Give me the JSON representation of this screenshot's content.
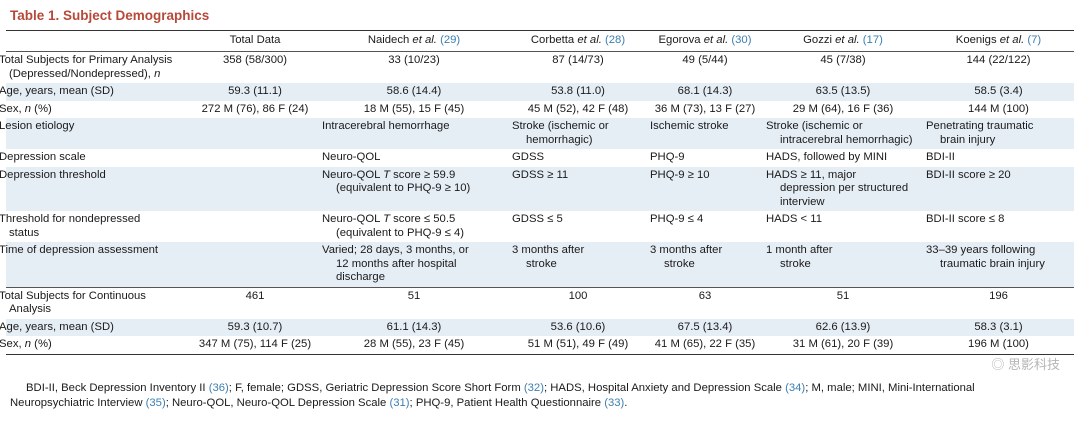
{
  "title": "Table 1. Subject Demographics",
  "headers": [
    {
      "text": "Total Data",
      "suffix": "",
      "cite": ""
    },
    {
      "text": "Naidech ",
      "suffix": "et al.",
      "cite": "(29)"
    },
    {
      "text": "Corbetta ",
      "suffix": "et al.",
      "cite": "(28)"
    },
    {
      "text": "Egorova ",
      "suffix": "et al.",
      "cite": "(30)"
    },
    {
      "text": "Gozzi ",
      "suffix": "et al.",
      "cite": "(17)"
    },
    {
      "text": "Koenigs ",
      "suffix": "et al.",
      "cite": "(7)"
    }
  ],
  "rows": {
    "total_primary": {
      "label_a": "Total Subjects for Primary Analysis",
      "label_b": "(Depressed/Nondepressed), ",
      "label_c": "n",
      "values": [
        "358 (58/300)",
        "33 (10/23)",
        "87 (14/73)",
        "49 (5/44)",
        "45 (7/38)",
        "144 (22/122)"
      ]
    },
    "age_primary": {
      "label": "Age, years, mean (SD)",
      "values": [
        "59.3 (11.1)",
        "58.6 (14.4)",
        "53.8 (11.0)",
        "68.1 (14.3)",
        "63.5 (13.5)",
        "58.5 (3.4)"
      ]
    },
    "sex_primary": {
      "label_a": "Sex, ",
      "label_b": "n",
      "label_c": " (%)",
      "values": [
        "272 M (76), 86 F (24)",
        "18 M (55), 15 F (45)",
        "45 M (52), 42 F (48)",
        "36 M (73), 13 F (27)",
        "29 M (64), 16 F (36)",
        "144 M (100)"
      ]
    },
    "lesion": {
      "label": "Lesion etiology",
      "naidech": "Intracerebral hemorrhage",
      "corbetta_a": "Stroke (ischemic or",
      "corbetta_b": "hemorrhagic)",
      "egorova": "Ischemic stroke",
      "gozzi_a": "Stroke (ischemic or",
      "gozzi_b": "intracerebral hemorrhagic)",
      "koenigs_a": "Penetrating traumatic",
      "koenigs_b": "brain injury"
    },
    "scale": {
      "label": "Depression scale",
      "naidech": "Neuro-QOL",
      "corbetta": "GDSS",
      "egorova": "PHQ-9",
      "gozzi": "HADS, followed by MINI",
      "koenigs": "BDI-II"
    },
    "threshold": {
      "label": "Depression threshold",
      "naidech_a": "Neuro-QOL ",
      "naidech_t": "T",
      "naidech_b": " score ≥ 59.9",
      "naidech_c": "(equivalent to PHQ-9 ≥ 10)",
      "corbetta": "GDSS ≥ 11",
      "egorova": "PHQ-9 ≥ 10",
      "gozzi_a": "HADS ≥ 11, major",
      "gozzi_b": "depression per structured",
      "gozzi_c": "interview",
      "koenigs": "BDI-II score ≥ 20"
    },
    "nondep": {
      "label_a": "Threshold for nondepressed",
      "label_b": "status",
      "naidech_a": "Neuro-QOL ",
      "naidech_t": "T",
      "naidech_b": " score ≤ 50.5",
      "naidech_c": "(equivalent to PHQ-9 ≤ 4)",
      "corbetta": "GDSS ≤ 5",
      "egorova": "PHQ-9 ≤ 4",
      "gozzi": "HADS < 11",
      "koenigs": "BDI-II score ≤ 8"
    },
    "timing": {
      "label": "Time of depression assessment",
      "naidech_a": "Varied; 28 days, 3 months, or",
      "naidech_b": "12 months after hospital",
      "naidech_c": "discharge",
      "corbetta_a": "3 months after",
      "corbetta_b": "stroke",
      "egorova_a": "3 months after",
      "egorova_b": "stroke",
      "gozzi_a": "1 month after",
      "gozzi_b": "stroke",
      "koenigs_a": "33–39 years following",
      "koenigs_b": "traumatic brain injury"
    },
    "total_cont": {
      "label_a": "Total Subjects for Continuous",
      "label_b": "Analysis",
      "values": [
        "461",
        "51",
        "100",
        "63",
        "51",
        "196"
      ]
    },
    "age_cont": {
      "label": "Age, years, mean (SD)",
      "values": [
        "59.3 (10.7)",
        "61.1 (14.3)",
        "53.6 (10.6)",
        "67.5 (13.4)",
        "62.6 (13.9)",
        "58.3 (3.1)"
      ]
    },
    "sex_cont": {
      "label_a": "Sex, ",
      "label_b": "n",
      "label_c": " (%)",
      "values": [
        "347 M (75), 114 F (25)",
        "28 M (55), 23 F (45)",
        "51 M (51), 49 F (49)",
        "41 M (65), 22 F (35)",
        "31 M (61), 20 F (39)",
        "196 M (100)"
      ]
    }
  },
  "footnote": {
    "p1": "BDI-II, Beck Depression Inventory II ",
    "c1": "(36)",
    "p2": "; F, female; GDSS, Geriatric Depression Score Short Form ",
    "c2": "(32)",
    "p3": "; HADS, Hospital Anxiety and Depression Scale ",
    "c3": "(34)",
    "p4": "; M, male; MINI, Mini-International",
    "p5": "Neuropsychiatric Interview ",
    "c5": "(35)",
    "p6": "; Neuro-QOL, Neuro-QOL Depression Scale ",
    "c6": "(31)",
    "p7": "; PHQ-9, Patient Health Questionnaire ",
    "c7": "(33)",
    "p8": "."
  },
  "watermark": "◎ 思影科技"
}
